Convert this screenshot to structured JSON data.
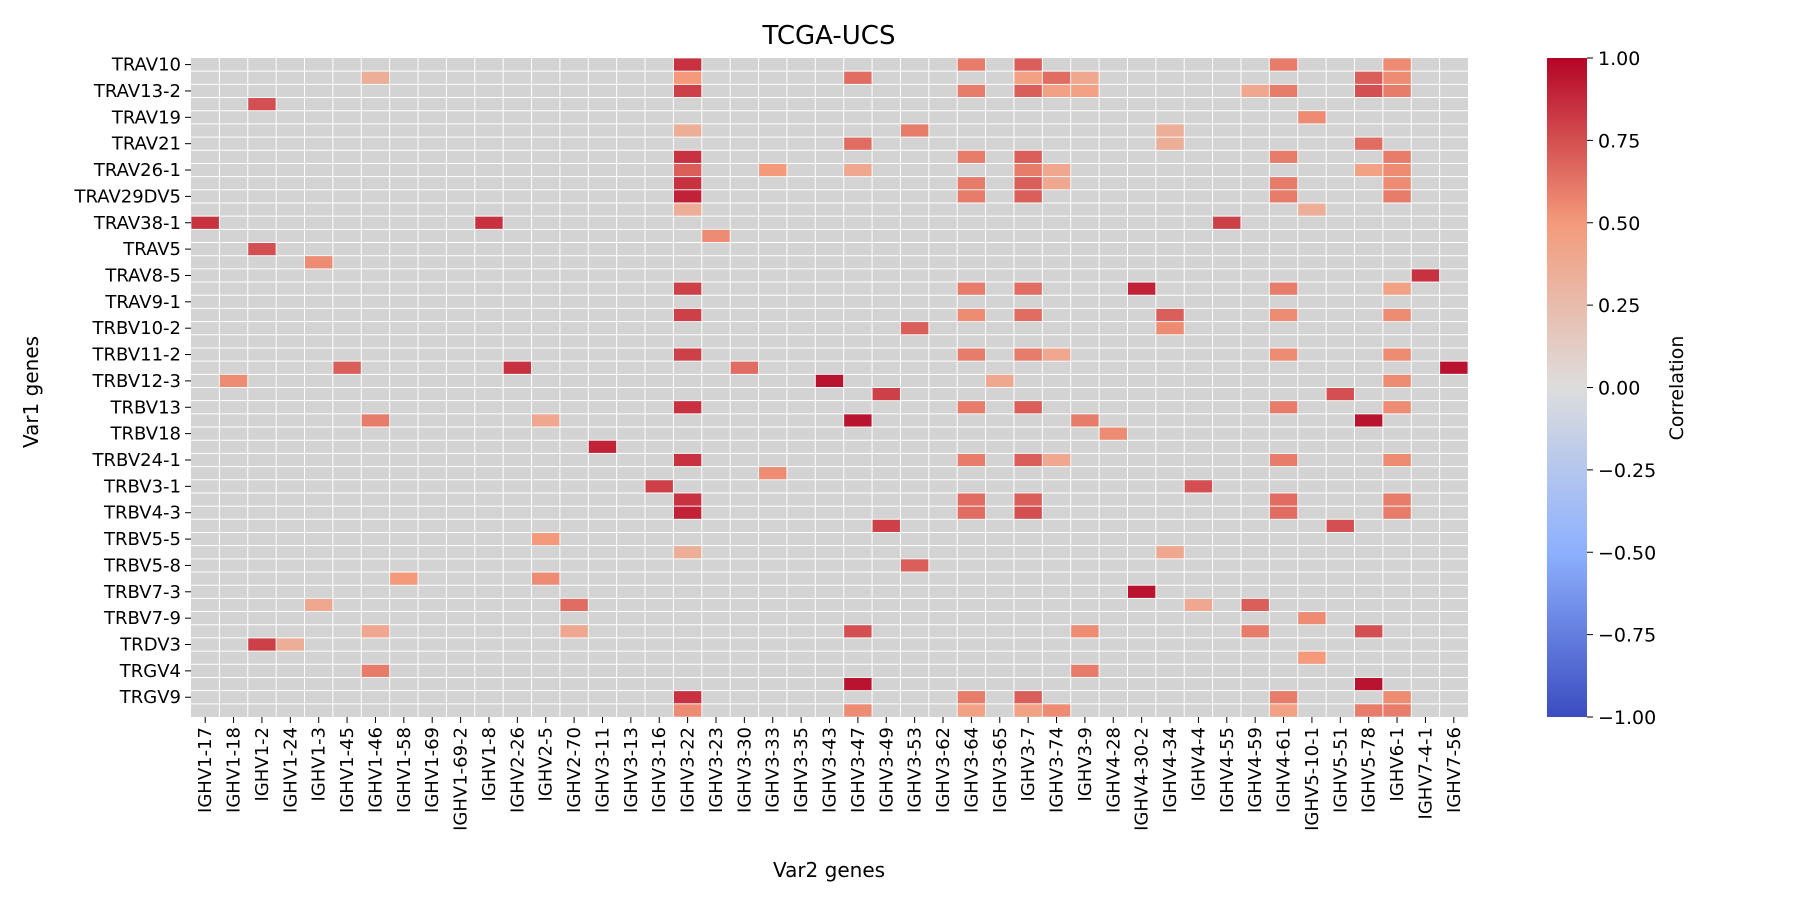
{
  "chart_data": {
    "type": "heatmap",
    "title": "TCGA-UCS",
    "xlabel": "Var2 genes",
    "ylabel": "Var1 genes",
    "x_tick_labels": [
      "IGHV1-17",
      "IGHV1-18",
      "IGHV1-2",
      "IGHV1-24",
      "IGHV1-3",
      "IGHV1-45",
      "IGHV1-46",
      "IGHV1-58",
      "IGHV1-69",
      "IGHV1-69-2",
      "IGHV1-8",
      "IGHV2-26",
      "IGHV2-5",
      "IGHV2-70",
      "IGHV3-11",
      "IGHV3-13",
      "IGHV3-16",
      "IGHV3-22",
      "IGHV3-23",
      "IGHV3-30",
      "IGHV3-33",
      "IGHV3-35",
      "IGHV3-43",
      "IGHV3-47",
      "IGHV3-49",
      "IGHV3-53",
      "IGHV3-62",
      "IGHV3-64",
      "IGHV3-65",
      "IGHV3-7",
      "IGHV3-74",
      "IGHV3-9",
      "IGHV4-28",
      "IGHV4-30-2",
      "IGHV4-34",
      "IGHV4-4",
      "IGHV4-55",
      "IGHV4-59",
      "IGHV4-61",
      "IGHV5-10-1",
      "IGHV5-51",
      "IGHV5-78",
      "IGHV6-1",
      "IGHV7-4-1",
      "IGHV7-56"
    ],
    "y_tick_labels": [
      "TRAV10",
      "TRAV13-2",
      "TRAV19",
      "TRAV21",
      "TRAV26-1",
      "TRAV29DV5",
      "TRAV38-1",
      "TRAV5",
      "TRAV8-5",
      "TRAV9-1",
      "TRBV10-2",
      "TRBV11-2",
      "TRBV12-3",
      "TRBV13",
      "TRBV18",
      "TRBV24-1",
      "TRBV3-1",
      "TRBV4-3",
      "TRBV5-5",
      "TRBV5-8",
      "TRBV7-3",
      "TRBV7-9",
      "TRDV3",
      "TRGV4",
      "TRGV9"
    ],
    "n_rows": 50,
    "n_cols": 45,
    "na_color": "#d3d3d3",
    "colormap": "coolwarm",
    "colorbar": {
      "label": "Correlation",
      "range": [
        -1.0,
        1.0
      ],
      "ticks": [
        "1.00",
        "0.75",
        "0.50",
        "0.25",
        "0.00",
        "−0.25",
        "−0.50",
        "−0.75",
        "−1.00"
      ],
      "colors": {
        "neg1": "#3b4cc0",
        "neg05": "#8db0fe",
        "zero": "#dddddd",
        "pos05": "#f49a7b",
        "pos1": "#b40426"
      }
    },
    "cells": [
      [
        0,
        17,
        0.85
      ],
      [
        0,
        27,
        0.6
      ],
      [
        0,
        29,
        0.7
      ],
      [
        0,
        38,
        0.6
      ],
      [
        0,
        42,
        0.55
      ],
      [
        1,
        6,
        0.35
      ],
      [
        1,
        17,
        0.5
      ],
      [
        1,
        23,
        0.65
      ],
      [
        1,
        29,
        0.45
      ],
      [
        1,
        30,
        0.65
      ],
      [
        1,
        31,
        0.4
      ],
      [
        1,
        41,
        0.7
      ],
      [
        1,
        42,
        0.55
      ],
      [
        2,
        17,
        0.8
      ],
      [
        2,
        27,
        0.6
      ],
      [
        2,
        29,
        0.7
      ],
      [
        2,
        30,
        0.45
      ],
      [
        2,
        31,
        0.45
      ],
      [
        2,
        37,
        0.4
      ],
      [
        2,
        38,
        0.6
      ],
      [
        2,
        41,
        0.75
      ],
      [
        2,
        42,
        0.6
      ],
      [
        3,
        2,
        0.75
      ],
      [
        4,
        39,
        0.55
      ],
      [
        5,
        17,
        0.35
      ],
      [
        5,
        25,
        0.6
      ],
      [
        5,
        34,
        0.35
      ],
      [
        6,
        23,
        0.65
      ],
      [
        6,
        34,
        0.35
      ],
      [
        6,
        41,
        0.65
      ],
      [
        7,
        17,
        0.85
      ],
      [
        7,
        27,
        0.6
      ],
      [
        7,
        29,
        0.7
      ],
      [
        7,
        38,
        0.6
      ],
      [
        7,
        42,
        0.6
      ],
      [
        8,
        17,
        0.7
      ],
      [
        8,
        20,
        0.5
      ],
      [
        8,
        23,
        0.4
      ],
      [
        8,
        29,
        0.6
      ],
      [
        8,
        30,
        0.4
      ],
      [
        8,
        41,
        0.45
      ],
      [
        8,
        42,
        0.55
      ],
      [
        9,
        17,
        0.85
      ],
      [
        9,
        27,
        0.6
      ],
      [
        9,
        29,
        0.7
      ],
      [
        9,
        30,
        0.4
      ],
      [
        9,
        38,
        0.6
      ],
      [
        9,
        42,
        0.55
      ],
      [
        10,
        17,
        0.9
      ],
      [
        10,
        27,
        0.6
      ],
      [
        10,
        29,
        0.7
      ],
      [
        10,
        38,
        0.6
      ],
      [
        10,
        42,
        0.6
      ],
      [
        11,
        17,
        0.35
      ],
      [
        11,
        39,
        0.35
      ],
      [
        12,
        0,
        0.85
      ],
      [
        12,
        10,
        0.85
      ],
      [
        12,
        36,
        0.8
      ],
      [
        13,
        18,
        0.55
      ],
      [
        14,
        2,
        0.75
      ],
      [
        15,
        4,
        0.55
      ],
      [
        16,
        43,
        0.85
      ],
      [
        17,
        17,
        0.8
      ],
      [
        17,
        27,
        0.6
      ],
      [
        17,
        29,
        0.65
      ],
      [
        17,
        33,
        0.9
      ],
      [
        17,
        38,
        0.6
      ],
      [
        17,
        42,
        0.45
      ],
      [
        19,
        17,
        0.8
      ],
      [
        19,
        27,
        0.55
      ],
      [
        19,
        29,
        0.65
      ],
      [
        19,
        34,
        0.7
      ],
      [
        19,
        38,
        0.55
      ],
      [
        19,
        42,
        0.55
      ],
      [
        20,
        25,
        0.7
      ],
      [
        20,
        34,
        0.55
      ],
      [
        22,
        17,
        0.8
      ],
      [
        22,
        27,
        0.6
      ],
      [
        22,
        29,
        0.6
      ],
      [
        22,
        30,
        0.4
      ],
      [
        22,
        38,
        0.55
      ],
      [
        22,
        42,
        0.55
      ],
      [
        23,
        5,
        0.7
      ],
      [
        23,
        11,
        0.85
      ],
      [
        23,
        19,
        0.65
      ],
      [
        23,
        44,
        0.95
      ],
      [
        24,
        1,
        0.55
      ],
      [
        24,
        22,
        0.95
      ],
      [
        24,
        28,
        0.4
      ],
      [
        24,
        42,
        0.55
      ],
      [
        25,
        24,
        0.8
      ],
      [
        25,
        40,
        0.75
      ],
      [
        26,
        17,
        0.85
      ],
      [
        26,
        27,
        0.6
      ],
      [
        26,
        29,
        0.7
      ],
      [
        26,
        38,
        0.6
      ],
      [
        26,
        42,
        0.55
      ],
      [
        27,
        6,
        0.6
      ],
      [
        27,
        12,
        0.4
      ],
      [
        27,
        23,
        0.95
      ],
      [
        27,
        31,
        0.6
      ],
      [
        27,
        41,
        0.95
      ],
      [
        28,
        32,
        0.55
      ],
      [
        29,
        14,
        0.9
      ],
      [
        30,
        17,
        0.85
      ],
      [
        30,
        27,
        0.6
      ],
      [
        30,
        29,
        0.7
      ],
      [
        30,
        30,
        0.4
      ],
      [
        30,
        38,
        0.6
      ],
      [
        30,
        42,
        0.55
      ],
      [
        31,
        20,
        0.55
      ],
      [
        32,
        16,
        0.8
      ],
      [
        32,
        35,
        0.75
      ],
      [
        33,
        17,
        0.85
      ],
      [
        33,
        27,
        0.65
      ],
      [
        33,
        29,
        0.7
      ],
      [
        33,
        38,
        0.65
      ],
      [
        33,
        42,
        0.6
      ],
      [
        34,
        17,
        0.9
      ],
      [
        34,
        27,
        0.65
      ],
      [
        34,
        29,
        0.75
      ],
      [
        34,
        38,
        0.65
      ],
      [
        34,
        42,
        0.6
      ],
      [
        35,
        24,
        0.8
      ],
      [
        35,
        40,
        0.75
      ],
      [
        36,
        12,
        0.5
      ],
      [
        37,
        17,
        0.35
      ],
      [
        37,
        34,
        0.4
      ],
      [
        38,
        25,
        0.7
      ],
      [
        39,
        7,
        0.5
      ],
      [
        39,
        12,
        0.55
      ],
      [
        40,
        33,
        0.95
      ],
      [
        41,
        4,
        0.4
      ],
      [
        41,
        13,
        0.65
      ],
      [
        41,
        35,
        0.4
      ],
      [
        41,
        37,
        0.7
      ],
      [
        42,
        39,
        0.55
      ],
      [
        43,
        6,
        0.4
      ],
      [
        43,
        13,
        0.4
      ],
      [
        43,
        23,
        0.75
      ],
      [
        43,
        31,
        0.55
      ],
      [
        43,
        37,
        0.6
      ],
      [
        43,
        41,
        0.75
      ],
      [
        44,
        2,
        0.8
      ],
      [
        44,
        3,
        0.35
      ],
      [
        45,
        39,
        0.5
      ],
      [
        46,
        6,
        0.6
      ],
      [
        46,
        31,
        0.6
      ],
      [
        47,
        23,
        0.95
      ],
      [
        47,
        41,
        0.95
      ],
      [
        48,
        17,
        0.85
      ],
      [
        48,
        27,
        0.6
      ],
      [
        48,
        29,
        0.7
      ],
      [
        48,
        38,
        0.6
      ],
      [
        48,
        42,
        0.55
      ],
      [
        49,
        17,
        0.55
      ],
      [
        49,
        23,
        0.55
      ],
      [
        49,
        27,
        0.45
      ],
      [
        49,
        29,
        0.45
      ],
      [
        49,
        30,
        0.55
      ],
      [
        49,
        38,
        0.45
      ],
      [
        49,
        41,
        0.6
      ],
      [
        49,
        42,
        0.6
      ]
    ]
  }
}
